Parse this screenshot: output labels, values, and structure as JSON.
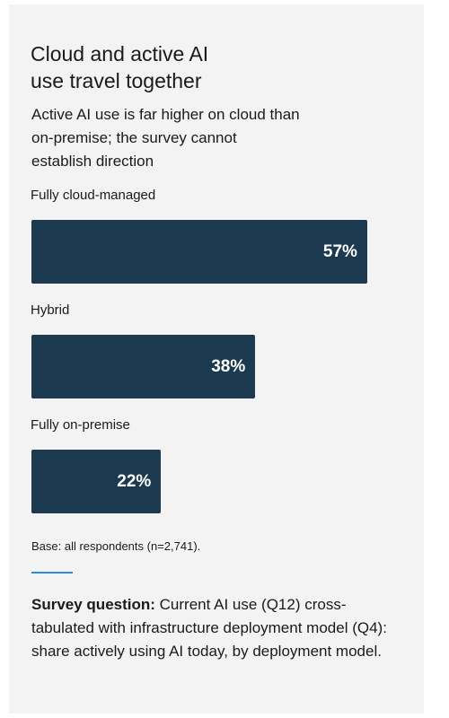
{
  "chart_data": {
    "type": "bar",
    "orientation": "horizontal",
    "title": "Cloud and active AI use travel together",
    "subtitle": "Active AI use is far higher on cloud than on-premise; the survey cannot establish direction",
    "categories": [
      "Fully cloud-managed",
      "Hybrid",
      "Fully on-premise"
    ],
    "values": [
      57,
      38,
      22
    ],
    "value_labels": [
      "57%",
      "38%",
      "22%"
    ],
    "color": "#1b3a4f",
    "note": "Base: all respondents (n=2,741)."
  },
  "footer": {
    "label": "Survey question:",
    "text": "Current AI use (Q12) cross-tabulated with infrastructure deployment model (Q4): share actively using AI today, by deployment model."
  }
}
